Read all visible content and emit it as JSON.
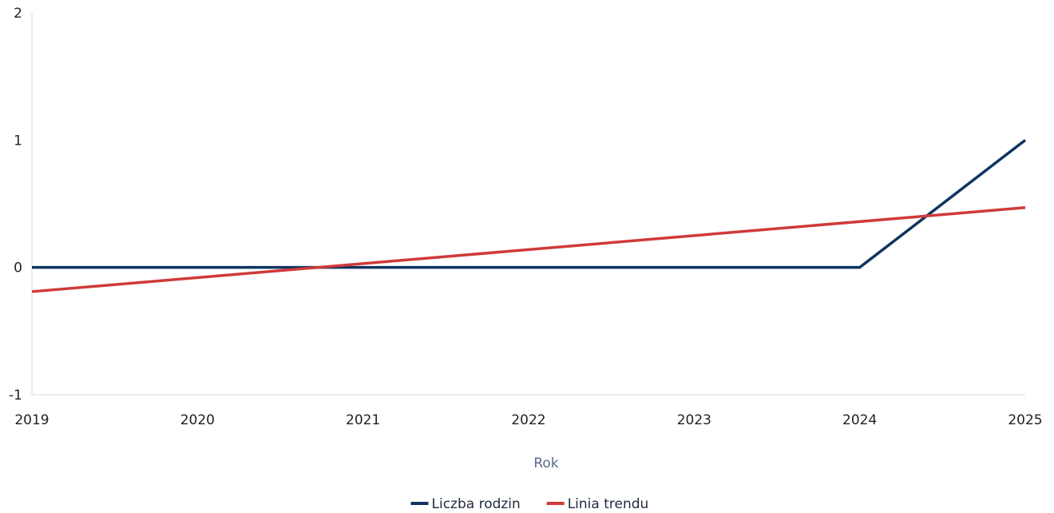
{
  "chart_data": {
    "type": "line",
    "x": [
      2019,
      2020,
      2021,
      2022,
      2023,
      2024,
      2025
    ],
    "series": [
      {
        "name": "Liczba rodzin",
        "color": "#0f3460",
        "points": [
          [
            2019,
            0
          ],
          [
            2024,
            0
          ],
          [
            2025,
            1
          ]
        ]
      },
      {
        "name": "Linia trendu",
        "color": "#d03a3a",
        "points": [
          [
            2019,
            -0.19
          ],
          [
            2025,
            0.47
          ]
        ]
      }
    ],
    "xlabel": "Rok",
    "ylabel": "",
    "xlim": [
      2019,
      2025
    ],
    "ylim": [
      -1,
      2
    ],
    "y_ticks": [
      -1,
      0,
      1,
      2
    ],
    "x_ticks": [
      2019,
      2020,
      2021,
      2022,
      2023,
      2024,
      2025
    ],
    "grid": false,
    "legend_position": "bottom-center"
  }
}
